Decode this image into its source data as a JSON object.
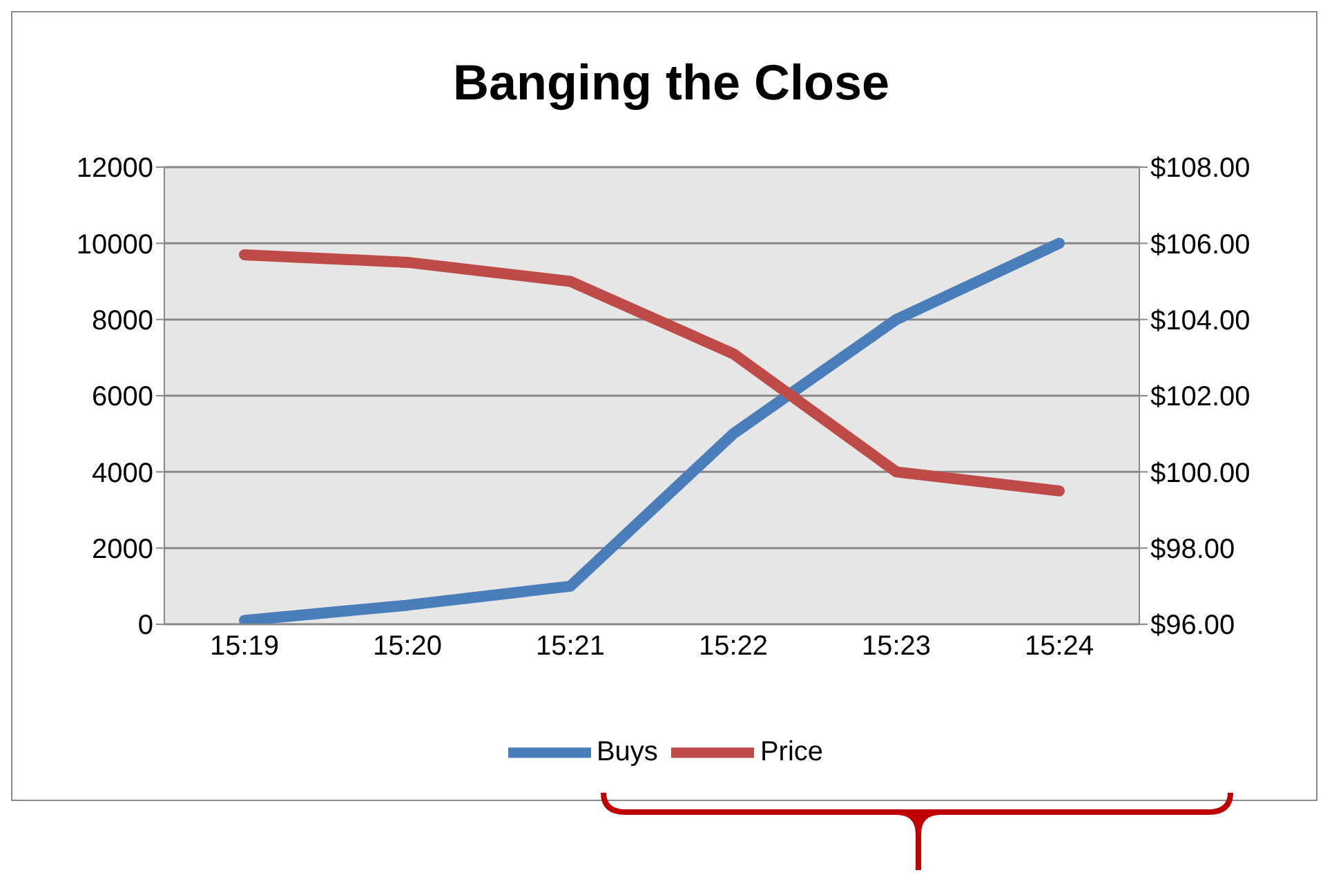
{
  "chart_data": {
    "type": "line",
    "title": "Banging the Close",
    "categories": [
      "15:19",
      "15:20",
      "15:21",
      "15:22",
      "15:23",
      "15:24"
    ],
    "series": [
      {
        "name": "Buys",
        "color": "#4a7ebb",
        "values": [
          100,
          500,
          1000,
          5000,
          8000,
          10000
        ]
      },
      {
        "name": "Price",
        "color": "#be4b48",
        "axis": "y2",
        "values": [
          105.7,
          105.5,
          105.0,
          103.1,
          100.0,
          99.5
        ]
      }
    ],
    "ylim": [
      0,
      12000
    ],
    "yticks": [
      0,
      2000,
      4000,
      6000,
      8000,
      10000,
      12000
    ],
    "y2lim": [
      96,
      108
    ],
    "y2ticks": [
      {
        "value": 96,
        "label": "$96.00"
      },
      {
        "value": 98,
        "label": "$98.00"
      },
      {
        "value": 100,
        "label": "$100.00"
      },
      {
        "value": 102,
        "label": "$102.00"
      },
      {
        "value": 104,
        "label": "$104.00"
      },
      {
        "value": 106,
        "label": "$106.00"
      },
      {
        "value": 108,
        "label": "$108.00"
      }
    ],
    "grid": "y",
    "legend": "bottom",
    "marker": "none",
    "line_style": "solid"
  }
}
